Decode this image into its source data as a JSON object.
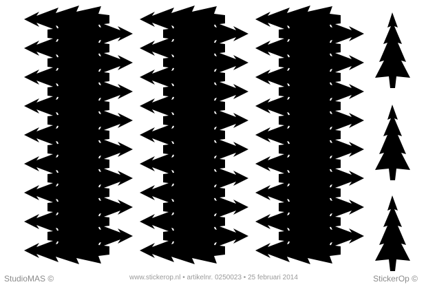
{
  "sheet": {
    "ink_color": "#000000",
    "background_color": "#ffffff",
    "icon": "christmas-tree-icon",
    "columns": [
      {
        "name": "tree-column-1",
        "orientation": "horizontal",
        "count": 17
      },
      {
        "name": "tree-column-2",
        "orientation": "horizontal",
        "count": 17
      },
      {
        "name": "tree-column-3",
        "orientation": "horizontal",
        "count": 17
      },
      {
        "name": "tree-column-4",
        "orientation": "upright",
        "count": 3
      }
    ]
  },
  "footer": {
    "brand_left": "StudioMAS ©",
    "info": "www.stickerop.nl  •  artikelnr. 0250023  •  25 februari 2014",
    "brand_right": "StickerOp ©"
  }
}
